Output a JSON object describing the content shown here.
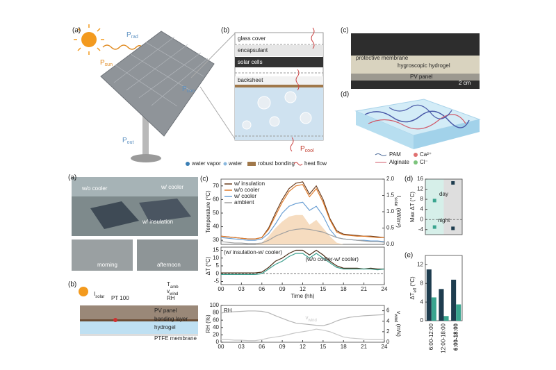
{
  "figure_top": {
    "panel_a": {
      "label": "(a)",
      "p_rad": [
        "P",
        "rad"
      ],
      "p_sun": [
        "P",
        "sun"
      ],
      "p_con": [
        "P",
        "con"
      ],
      "p_out": [
        "P",
        "out"
      ]
    },
    "panel_b": {
      "label": "(b)",
      "layers": [
        "glass cover",
        "encapsulant",
        "solar cells",
        "backsheet"
      ],
      "p_cool": [
        "P",
        "cool"
      ],
      "legend": [
        "water vapor",
        "water",
        "robust bonding",
        "heat flow"
      ]
    },
    "panel_c": {
      "label": "(c)",
      "texts": [
        "protective membrane",
        "hygroscopic hydrogel",
        "PV panel",
        "2 cm"
      ]
    },
    "panel_d": {
      "label": "(d)",
      "legend": [
        "PAM",
        "Ca²⁺",
        "Alginate",
        "Cl⁻"
      ]
    }
  },
  "figure_bottom": {
    "panel_a": {
      "label": "(a)",
      "photo_labels": [
        "w/o cooler",
        "w/ cooler",
        "w/ insulation"
      ],
      "captions": [
        "morning",
        "afternoon"
      ]
    },
    "panel_b": {
      "label": "(b)",
      "i_solar": [
        "I",
        "solar"
      ],
      "t_amb": [
        "T",
        "amb"
      ],
      "v_wind": [
        "v",
        "wind"
      ],
      "rh": "RH",
      "sensor": "PT 100",
      "layers": [
        "PV panel",
        "bonding layer",
        "hydrogel",
        "PTFE membrane"
      ]
    }
  },
  "chart_data": [
    {
      "type": "line",
      "label": "(c)",
      "ylabel": "Temperature (°C)",
      "y2label": [
        "I",
        "solar",
        " (kW/m²)"
      ],
      "x": [
        0,
        1,
        2,
        3,
        4,
        5,
        6,
        7,
        8,
        9,
        10,
        11,
        12,
        13,
        14,
        15,
        16,
        17,
        18,
        19,
        20,
        21,
        22,
        23,
        24
      ],
      "xlim": [
        0,
        24
      ],
      "ylim": [
        27,
        75
      ],
      "yticks": [
        30,
        40,
        50,
        60,
        70
      ],
      "y2lim": [
        0,
        2
      ],
      "y2ticks": [
        {
          "value": 0,
          "label": "0.0"
        },
        0.5,
        {
          "value": 1,
          "label": "1.0"
        },
        1.5,
        {
          "value": 2,
          "label": "2.0"
        }
      ],
      "legend": "upper left",
      "series": [
        {
          "axis": "y2",
          "area": true,
          "color": "#f6dcc0",
          "values": [
            0,
            0,
            0,
            0,
            0,
            0,
            0.05,
            0.25,
            0.5,
            0.7,
            0.85,
            0.9,
            0.9,
            0.6,
            0.75,
            0.5,
            0.25,
            0.05,
            0,
            0,
            0,
            0,
            0,
            0,
            0
          ]
        },
        {
          "name": "w/ insulation",
          "color": "#6b3d1e",
          "values": [
            33,
            32.5,
            32,
            31.5,
            31,
            31,
            32,
            39,
            50,
            60,
            68,
            72,
            73,
            64,
            70,
            60,
            46,
            37,
            34.5,
            34,
            33.5,
            33,
            33,
            32.5,
            32
          ]
        },
        {
          "name": "w/o cooler",
          "color": "#e07b2a",
          "values": [
            33,
            32.5,
            32,
            31.5,
            31,
            31,
            32,
            38,
            48,
            58,
            66,
            70,
            71,
            62,
            68,
            58,
            45,
            36,
            34,
            33.5,
            33,
            33,
            32.5,
            32,
            32
          ]
        },
        {
          "name": "w/ cooler",
          "color": "#6a9fd4",
          "values": [
            32,
            31.5,
            31,
            30.5,
            30,
            30,
            31,
            35,
            42,
            50,
            55,
            57,
            58,
            52,
            55,
            48,
            38,
            32,
            31,
            30.5,
            30,
            30,
            29.5,
            29.5,
            29
          ]
        },
        {
          "name": "ambient",
          "color": "#a0a0a0",
          "values": [
            29,
            28.5,
            28,
            28,
            27.5,
            27.5,
            28,
            30,
            33,
            35,
            37,
            38,
            38.5,
            38,
            37,
            36,
            34,
            32,
            31,
            30.5,
            30,
            29.5,
            29,
            29,
            28.5
          ]
        }
      ]
    },
    {
      "type": "line",
      "ylabel": "ΔT (°C)",
      "xlabel": "Time (hh)",
      "x": [
        0,
        1,
        2,
        3,
        4,
        5,
        6,
        7,
        8,
        9,
        10,
        11,
        12,
        13,
        14,
        15,
        16,
        17,
        18,
        19,
        20,
        21,
        22,
        23,
        24
      ],
      "xlim": [
        0,
        24
      ],
      "xticks": [
        {
          "value": 0,
          "label": "00"
        },
        {
          "value": 3,
          "label": "03"
        },
        {
          "value": 6,
          "label": "06"
        },
        {
          "value": 9,
          "label": "09"
        },
        12,
        15,
        18,
        21,
        24
      ],
      "ylim": [
        -7,
        17
      ],
      "yticks": [
        -5,
        0,
        5,
        10,
        15
      ],
      "zero_line": true,
      "series": [
        {
          "name": "(w/ insulation-w/ cooler)",
          "color": "#4a2c16",
          "values": [
            0.5,
            0.5,
            0.5,
            0.5,
            0.5,
            0.5,
            1,
            4,
            8,
            10,
            13,
            15,
            15,
            12,
            15,
            12,
            8,
            5,
            3.5,
            3.5,
            3.5,
            3,
            3.5,
            3,
            3
          ]
        },
        {
          "name": "(w/o cooler-w/ cooler)",
          "color": "#3a9e8c",
          "values": [
            -0.5,
            -0.5,
            -0.5,
            -0.5,
            -0.5,
            -0.5,
            0,
            3,
            6,
            8,
            11,
            13,
            13,
            10,
            13,
            10,
            7,
            4,
            3,
            3,
            3,
            3,
            3,
            2.5,
            3
          ]
        }
      ]
    },
    {
      "type": "line",
      "ylabel": "RH (%)",
      "y2label": [
        "v",
        "wind",
        " (m/s)"
      ],
      "x": [
        0,
        1,
        2,
        3,
        4,
        5,
        6,
        7,
        8,
        9,
        10,
        11,
        12,
        13,
        14,
        15,
        16,
        17,
        18,
        19,
        20,
        21,
        22,
        23,
        24
      ],
      "xlim": [
        0,
        24
      ],
      "xticks": [
        {
          "value": 0,
          "label": "00"
        },
        {
          "value": 3,
          "label": "03"
        },
        {
          "value": 6,
          "label": "06"
        },
        {
          "value": 9,
          "label": "09"
        },
        12,
        15,
        18,
        21,
        24
      ],
      "ylim": [
        0,
        100
      ],
      "yticks": [
        0,
        20,
        40,
        60,
        80,
        100
      ],
      "y2lim": [
        0,
        7
      ],
      "y2ticks": [
        0,
        2,
        4,
        6
      ],
      "series": [
        {
          "name": "RH",
          "color": "#b5b5b5",
          "values": [
            80,
            82,
            83,
            84,
            85,
            85,
            84,
            80,
            72,
            65,
            58,
            52,
            50,
            48,
            46,
            45,
            50,
            58,
            64,
            68,
            70,
            72,
            73,
            74,
            75
          ]
        },
        {
          "name": [
            "v",
            "wind"
          ],
          "axis": "y2",
          "color": "#c8c8c8",
          "values": [
            0.5,
            0.5,
            0.4,
            0.4,
            0.3,
            0.3,
            0.5,
            0.8,
            1,
            1.2,
            1.5,
            1.8,
            2,
            2.2,
            2.5,
            2.3,
            2,
            1.5,
            1,
            0.8,
            0.7,
            0.6,
            0.5,
            0.5,
            0.5
          ]
        }
      ]
    },
    {
      "type": "scatter",
      "label": "(d)",
      "ylabel": "Max ΔT (°C)",
      "categories": [
        null,
        null
      ],
      "colors": [
        "#3aa58f",
        "#1e3d4f"
      ],
      "backgrounds": [
        "#d6efe9",
        "#dedede"
      ],
      "ylim": [
        -6,
        16
      ],
      "yticks": [
        -4,
        0,
        4,
        8,
        12,
        16
      ],
      "zero_line": true,
      "series": [
        {
          "name": "day",
          "values": [
            7.5,
            14.5
          ]
        },
        {
          "name": "night",
          "values": [
            -3,
            -3.5
          ]
        }
      ]
    },
    {
      "type": "bar",
      "label": "(e)",
      "ylabel": [
        "ΔT",
        "eff",
        " (°C)"
      ],
      "categories": [
        "6:00-12:00",
        "12:00-18:00",
        "6:00-18:00"
      ],
      "ylim": [
        0,
        14
      ],
      "yticks": [
        0,
        4,
        8,
        12
      ],
      "series": [
        {
          "color": "#1e3d4f",
          "values": [
            11,
            6.8,
            8.8
          ]
        },
        {
          "color": "#3aa58f",
          "values": [
            5,
            1,
            3.5
          ]
        }
      ]
    }
  ]
}
